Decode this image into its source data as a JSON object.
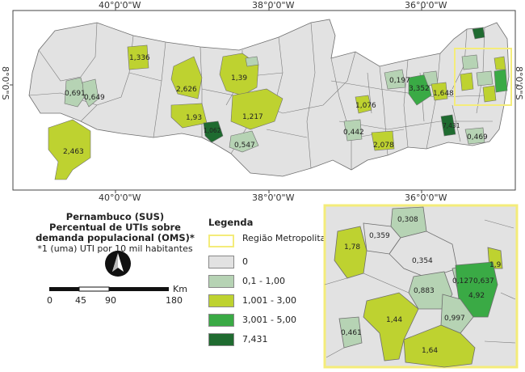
{
  "title": {
    "line1": "Pernambuco (SUS)",
    "line2": "Percentual de UTIs sobre",
    "line3": "demanda populacional (OMS)*",
    "note": "*1 (uma) UTI por 10 mil habitantes"
  },
  "coords": {
    "top": [
      "40°0'0\"W",
      "38°0'0\"W",
      "36°0'0\"W"
    ],
    "bottom": [
      "40°0'0\"W",
      "38°0'0\"W",
      "36°0'0\"W"
    ],
    "left": "8°0'0\"S",
    "right": "8°0'0\"S"
  },
  "legend": {
    "title": "Legenda",
    "items": [
      {
        "label": "Região Metropolitana",
        "color": "none",
        "border": "#f4ec7a"
      },
      {
        "label": "0",
        "color": "#e2e2e2"
      },
      {
        "label": "0,1 - 1,00",
        "color": "#b6d3b4"
      },
      {
        "label": "1,001 - 3,00",
        "color": "#bed230"
      },
      {
        "label": "3,001 - 5,00",
        "color": "#3aaa45"
      },
      {
        "label": "7,431",
        "color": "#1f6b30"
      }
    ]
  },
  "scale": {
    "ticks": [
      "0",
      "45",
      "90",
      "180"
    ],
    "unit": "Km"
  },
  "map_labels": {
    "m1336": "1,336",
    "m2626": "2,626",
    "m139": "1,39",
    "m0691": "0,691",
    "m0649": "0,649",
    "m193": "1,93",
    "m1217": "1,217",
    "m2463": "2,463",
    "m0547": "0,547",
    "m1062": "1,062",
    "m1076": "1,076",
    "m0442": "0,442",
    "m0197": "0,197",
    "m3352": "3,352",
    "m1648": "1,648",
    "m0469": "0,469",
    "m2078": "2,078",
    "m7431": "7,431"
  },
  "inset_labels": {
    "i0308": "0,308",
    "i0359": "0,359",
    "i178": "1,78",
    "i0354": "0,354",
    "i0883": "0,883",
    "i0127": "0,127",
    "i0637": "0,637",
    "i19": "1,9",
    "i492": "4,92",
    "i0997": "0,997",
    "i144": "1,44",
    "i0461": "0,461",
    "i164": "1,64"
  }
}
